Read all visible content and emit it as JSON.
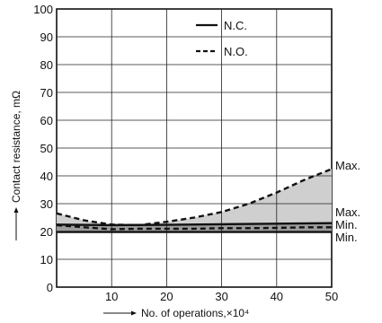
{
  "chart_data": {
    "type": "line",
    "xlabel": "No. of operations,×10⁴",
    "ylabel": "Contact resistance, mΩ",
    "xlim": [
      0,
      50
    ],
    "ylim": [
      0,
      100
    ],
    "xticks": [
      "10",
      "20",
      "30",
      "40",
      "50"
    ],
    "yticks": [
      "0",
      "10",
      "20",
      "30",
      "40",
      "50",
      "60",
      "70",
      "80",
      "90",
      "100"
    ],
    "grid": true,
    "legend": {
      "position": "top-center",
      "entries": [
        {
          "label": "N.C.",
          "style": "solid"
        },
        {
          "label": "N.O.",
          "style": "dashed"
        }
      ]
    },
    "series": [
      {
        "name": "N.C.",
        "role": "Max.",
        "style": "solid",
        "x": [
          0,
          10,
          20,
          30,
          40,
          50
        ],
        "y": [
          22.5,
          22.3,
          22.4,
          22.6,
          22.8,
          23
        ]
      },
      {
        "name": "N.C.",
        "role": "Min.",
        "style": "solid",
        "x": [
          0,
          10,
          20,
          30,
          40,
          50
        ],
        "y": [
          19.8,
          19.8,
          19.8,
          19.8,
          19.8,
          19.8
        ]
      },
      {
        "name": "N.O.",
        "role": "Max.",
        "style": "dashed",
        "x": [
          0,
          5,
          10,
          15,
          20,
          25,
          30,
          35,
          40,
          45,
          50
        ],
        "y": [
          26.5,
          24,
          22.5,
          22.3,
          23.5,
          25,
          27,
          30,
          34,
          38.5,
          42.5
        ]
      },
      {
        "name": "N.O.",
        "role": "Min.",
        "style": "dashed",
        "x": [
          0,
          5,
          10,
          15,
          20,
          25,
          30,
          35,
          40,
          45,
          50
        ],
        "y": [
          22.3,
          21.5,
          20.8,
          21,
          21,
          21,
          21.2,
          21.2,
          21.3,
          21.5,
          21.5
        ]
      }
    ],
    "annotations": [
      {
        "text": "Max.",
        "x": 50,
        "y": 42.5
      },
      {
        "text": "Max.",
        "x": 50,
        "y": 23
      },
      {
        "text": "Min.",
        "x": 50,
        "y": 21.5
      },
      {
        "text": "Min.",
        "x": 50,
        "y": 19.8
      }
    ],
    "colors": {
      "line": "#111111",
      "band": "#cfcfcf",
      "grid": "#222222"
    }
  }
}
